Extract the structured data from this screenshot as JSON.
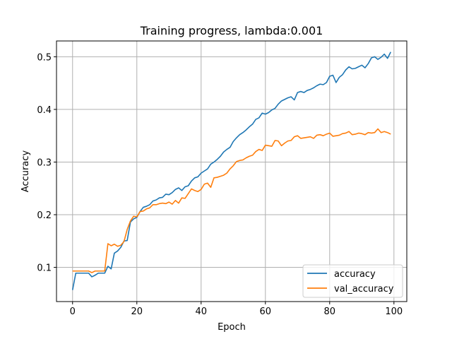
{
  "chart_data": {
    "type": "line",
    "title": "Training progress, lambda:0.001",
    "xlabel": "Epoch",
    "ylabel": "Accuracy",
    "xlim": [
      -5,
      104
    ],
    "ylim": [
      0.035,
      0.53
    ],
    "xticks": [
      0,
      20,
      40,
      60,
      80,
      100
    ],
    "yticks": [
      0.1,
      0.2,
      0.3,
      0.4,
      0.5
    ],
    "ytick_labels": [
      "0.1",
      "0.2",
      "0.3",
      "0.4",
      "0.5"
    ],
    "grid": true,
    "legend_position": "lower-right",
    "series": [
      {
        "name": "accuracy",
        "color": "#1f77b4",
        "x": [
          0,
          1,
          2,
          3,
          4,
          5,
          6,
          7,
          8,
          9,
          10,
          11,
          12,
          13,
          14,
          15,
          16,
          17,
          18,
          19,
          20,
          21,
          22,
          23,
          24,
          25,
          26,
          27,
          28,
          29,
          30,
          31,
          32,
          33,
          34,
          35,
          36,
          37,
          38,
          39,
          40,
          41,
          42,
          43,
          44,
          45,
          46,
          47,
          48,
          49,
          50,
          51,
          52,
          53,
          54,
          55,
          56,
          57,
          58,
          59,
          60,
          61,
          62,
          63,
          64,
          65,
          66,
          67,
          68,
          69,
          70,
          71,
          72,
          73,
          74,
          75,
          76,
          77,
          78,
          79,
          80,
          81,
          82,
          83,
          84,
          85,
          86,
          87,
          88,
          89,
          90,
          91,
          92,
          93,
          94,
          95,
          96,
          97,
          98,
          99
        ],
        "values": [
          0.057,
          0.089,
          0.089,
          0.089,
          0.089,
          0.089,
          0.082,
          0.085,
          0.089,
          0.089,
          0.089,
          0.102,
          0.097,
          0.127,
          0.131,
          0.138,
          0.15,
          0.151,
          0.186,
          0.192,
          0.195,
          0.206,
          0.214,
          0.216,
          0.219,
          0.226,
          0.228,
          0.232,
          0.233,
          0.239,
          0.238,
          0.242,
          0.248,
          0.251,
          0.246,
          0.253,
          0.255,
          0.264,
          0.27,
          0.272,
          0.279,
          0.283,
          0.287,
          0.296,
          0.3,
          0.305,
          0.311,
          0.319,
          0.324,
          0.328,
          0.339,
          0.346,
          0.352,
          0.356,
          0.361,
          0.367,
          0.372,
          0.381,
          0.384,
          0.393,
          0.391,
          0.394,
          0.399,
          0.402,
          0.41,
          0.416,
          0.419,
          0.422,
          0.424,
          0.418,
          0.432,
          0.434,
          0.432,
          0.436,
          0.438,
          0.441,
          0.445,
          0.448,
          0.447,
          0.451,
          0.463,
          0.465,
          0.451,
          0.461,
          0.466,
          0.475,
          0.481,
          0.477,
          0.478,
          0.481,
          0.484,
          0.479,
          0.487,
          0.498,
          0.5,
          0.495,
          0.499,
          0.505,
          0.497,
          0.509
        ]
      },
      {
        "name": "val_accuracy",
        "color": "#ff7f0e",
        "x": [
          0,
          1,
          2,
          3,
          4,
          5,
          6,
          7,
          8,
          9,
          10,
          11,
          12,
          13,
          14,
          15,
          16,
          17,
          18,
          19,
          20,
          21,
          22,
          23,
          24,
          25,
          26,
          27,
          28,
          29,
          30,
          31,
          32,
          33,
          34,
          35,
          36,
          37,
          38,
          39,
          40,
          41,
          42,
          43,
          44,
          45,
          46,
          47,
          48,
          49,
          50,
          51,
          52,
          53,
          54,
          55,
          56,
          57,
          58,
          59,
          60,
          61,
          62,
          63,
          64,
          65,
          66,
          67,
          68,
          69,
          70,
          71,
          72,
          73,
          74,
          75,
          76,
          77,
          78,
          79,
          80,
          81,
          82,
          83,
          84,
          85,
          86,
          87,
          88,
          89,
          90,
          91,
          92,
          93,
          94,
          95,
          96,
          97,
          98,
          99
        ],
        "values": [
          0.093,
          0.093,
          0.093,
          0.093,
          0.093,
          0.093,
          0.09,
          0.093,
          0.093,
          0.093,
          0.093,
          0.145,
          0.141,
          0.144,
          0.14,
          0.142,
          0.149,
          0.172,
          0.188,
          0.197,
          0.196,
          0.206,
          0.207,
          0.211,
          0.213,
          0.219,
          0.219,
          0.221,
          0.222,
          0.221,
          0.224,
          0.22,
          0.227,
          0.222,
          0.232,
          0.231,
          0.24,
          0.249,
          0.246,
          0.244,
          0.248,
          0.258,
          0.26,
          0.252,
          0.27,
          0.271,
          0.273,
          0.275,
          0.279,
          0.287,
          0.293,
          0.301,
          0.303,
          0.304,
          0.308,
          0.311,
          0.313,
          0.32,
          0.324,
          0.322,
          0.332,
          0.331,
          0.33,
          0.341,
          0.34,
          0.331,
          0.336,
          0.34,
          0.341,
          0.348,
          0.35,
          0.345,
          0.346,
          0.347,
          0.348,
          0.345,
          0.351,
          0.352,
          0.35,
          0.353,
          0.355,
          0.349,
          0.35,
          0.351,
          0.354,
          0.355,
          0.358,
          0.352,
          0.353,
          0.355,
          0.354,
          0.352,
          0.356,
          0.355,
          0.356,
          0.363,
          0.356,
          0.358,
          0.356,
          0.353
        ]
      }
    ]
  }
}
